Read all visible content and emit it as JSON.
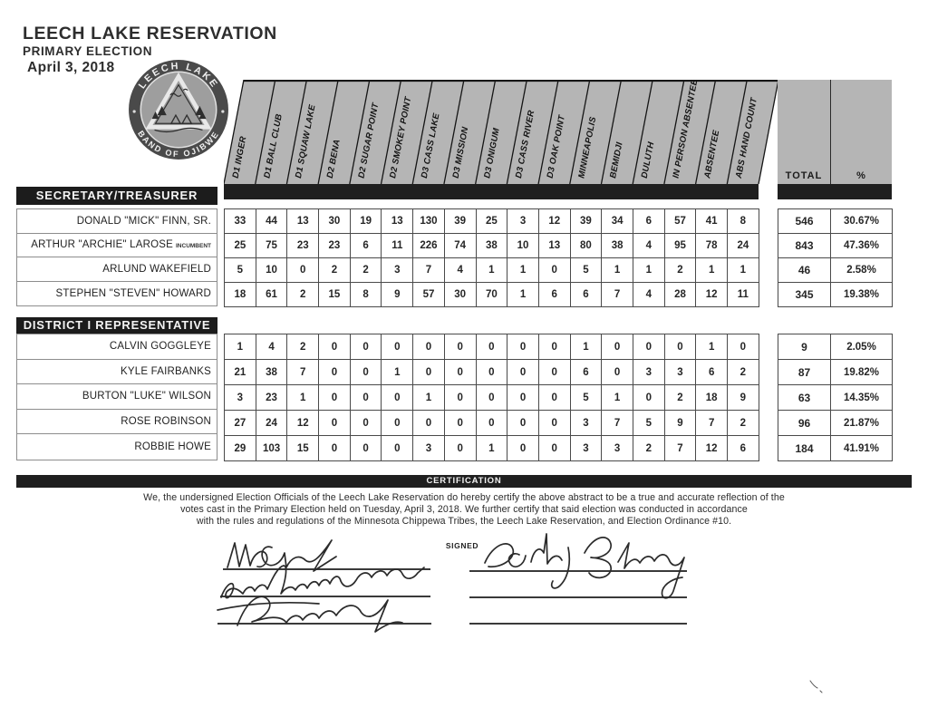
{
  "document": {
    "title": "LEECH LAKE RESERVATION",
    "subtitle": "PRIMARY ELECTION",
    "date": "April 3, 2018"
  },
  "logo": {
    "arc_top": "LEECH LAKE",
    "arc_bottom": "BAND OF OJIBWE"
  },
  "table": {
    "precinct_columns": [
      "D1 INGER",
      "D1 BALL CLUB",
      "D1 SQUAW LAKE",
      "D2 BENA",
      "D2 SUGAR POINT",
      "D2 SMOKEY POINT",
      "D3 CASS LAKE",
      "D3 MISSION",
      "D3 ONIGUM",
      "D3 CASS RIVER",
      "D3 OAK POINT",
      "MINNEAPOLIS",
      "BEMIDJI",
      "DULUTH",
      "IN PERSON ABSENTEE",
      "ABSENTEE",
      "ABS HAND COUNT"
    ],
    "total_label": "TOTAL",
    "percent_label": "%",
    "sections": [
      {
        "title": "SECRETARY/TREASURER",
        "rows": [
          {
            "name": "DONALD \"MICK\" FINN, SR.",
            "suffix": "",
            "votes": [
              33,
              44,
              13,
              30,
              19,
              13,
              130,
              39,
              25,
              3,
              12,
              39,
              34,
              6,
              57,
              41,
              8
            ],
            "total": 546,
            "percent": "30.67%"
          },
          {
            "name": "ARTHUR \"ARCHIE\" LAROSE",
            "suffix": "INCUMBENT",
            "votes": [
              25,
              75,
              23,
              23,
              6,
              11,
              226,
              74,
              38,
              10,
              13,
              80,
              38,
              4,
              95,
              78,
              24
            ],
            "total": 843,
            "percent": "47.36%"
          },
          {
            "name": "ARLUND WAKEFIELD",
            "suffix": "",
            "votes": [
              5,
              10,
              0,
              2,
              2,
              3,
              7,
              4,
              1,
              1,
              0,
              5,
              1,
              1,
              2,
              1,
              1
            ],
            "total": 46,
            "percent": "2.58%"
          },
          {
            "name": "STEPHEN \"STEVEN\" HOWARD",
            "suffix": "",
            "votes": [
              18,
              61,
              2,
              15,
              8,
              9,
              57,
              30,
              70,
              1,
              6,
              6,
              7,
              4,
              28,
              12,
              11
            ],
            "total": 345,
            "percent": "19.38%"
          }
        ]
      },
      {
        "title": "DISTRICT I REPRESENTATIVE",
        "rows": [
          {
            "name": "CALVIN GOGGLEYE",
            "suffix": "",
            "votes": [
              1,
              4,
              2,
              0,
              0,
              0,
              0,
              0,
              0,
              0,
              0,
              1,
              0,
              0,
              0,
              1,
              0
            ],
            "total": 9,
            "percent": "2.05%"
          },
          {
            "name": "KYLE FAIRBANKS",
            "suffix": "",
            "votes": [
              21,
              38,
              7,
              0,
              0,
              1,
              0,
              0,
              0,
              0,
              0,
              6,
              0,
              3,
              3,
              6,
              2
            ],
            "total": 87,
            "percent": "19.82%"
          },
          {
            "name": "BURTON \"LUKE\" WILSON",
            "suffix": "",
            "votes": [
              3,
              23,
              1,
              0,
              0,
              0,
              1,
              0,
              0,
              0,
              0,
              5,
              1,
              0,
              2,
              18,
              9
            ],
            "total": 63,
            "percent": "14.35%"
          },
          {
            "name": "ROSE ROBINSON",
            "suffix": "",
            "votes": [
              27,
              24,
              12,
              0,
              0,
              0,
              0,
              0,
              0,
              0,
              0,
              3,
              7,
              5,
              9,
              7,
              2
            ],
            "total": 96,
            "percent": "21.87%"
          },
          {
            "name": "ROBBIE HOWE",
            "suffix": "",
            "votes": [
              29,
              103,
              15,
              0,
              0,
              0,
              3,
              0,
              1,
              0,
              0,
              3,
              3,
              2,
              7,
              12,
              6
            ],
            "total": 184,
            "percent": "41.91%"
          }
        ]
      }
    ]
  },
  "certification": {
    "bar_label": "CERTIFICATION",
    "lines": [
      "We, the undersigned Election Officials of the Leech Lake Reservation do hereby certify the above abstract to be a true and accurate reflection of the",
      "votes cast in the Primary Election held on Tuesday, April 3, 2018. We further certify that said election was conducted in accordance",
      "with the rules and regulations of the Minnesota Chippewa Tribes, the Leech Lake Reservation, and Election Ordinance #10."
    ],
    "signed_label": "SIGNED"
  },
  "colors": {
    "band_gray": "#b5b5b5",
    "bar_black": "#1f1f1f",
    "ink": "#1a1a1a"
  }
}
